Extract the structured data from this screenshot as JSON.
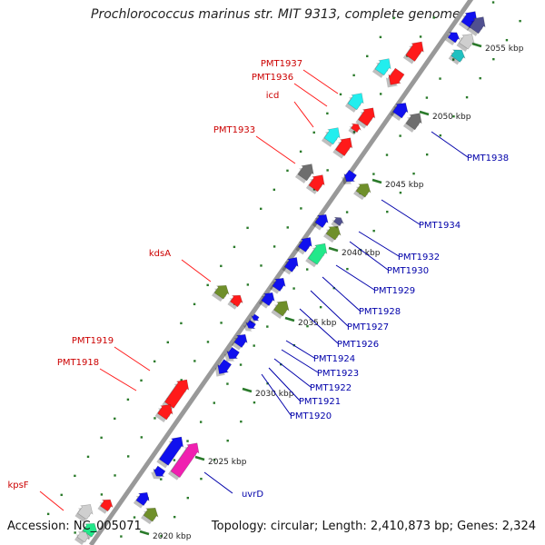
{
  "title": "Prochlorococcus marinus str. MIT 9313, complete genome",
  "footer": {
    "accession": "Accession: NC_005071",
    "topology": "Topology: circular; Length: 2,410,873 bp; Genes: 2,324"
  },
  "colors": {
    "red": "#ff1a1a",
    "blue": "#1010ee",
    "cyan": "#22eeee",
    "gray": "#6e6e6e",
    "olive": "#6f8f2a",
    "green": "#22e88a",
    "magenta": "#f020b0",
    "navy": "#505090",
    "lightgray": "#cfcfcf",
    "teal": "#20c0c0",
    "label_red": "#cc0000",
    "label_blue": "#0000aa",
    "axis": "#9a9a9a",
    "tick": "#2a7a2a"
  },
  "ticks": [
    {
      "label": "2020 kbp"
    },
    {
      "label": "2025 kbp"
    },
    {
      "label": "2030 kbp"
    },
    {
      "label": "2035 kbp"
    },
    {
      "label": "2040 kbp"
    },
    {
      "label": "2045 kbp"
    },
    {
      "label": "2050 kbp"
    },
    {
      "label": "2055 kbp"
    }
  ],
  "labels_left": [
    "PMT1937",
    "PMT1936",
    "icd",
    "PMT1933",
    "kdsA",
    "PMT1919",
    "PMT1918",
    "kpsF"
  ],
  "labels_right": [
    "PMT1938",
    "PMT1934",
    "PMT1932",
    "PMT1930",
    "PMT1929",
    "PMT1928",
    "PMT1927",
    "PMT1926",
    "PMT1924",
    "PMT1923",
    "PMT1922",
    "PMT1921",
    "PMT1920",
    "uvrD"
  ]
}
